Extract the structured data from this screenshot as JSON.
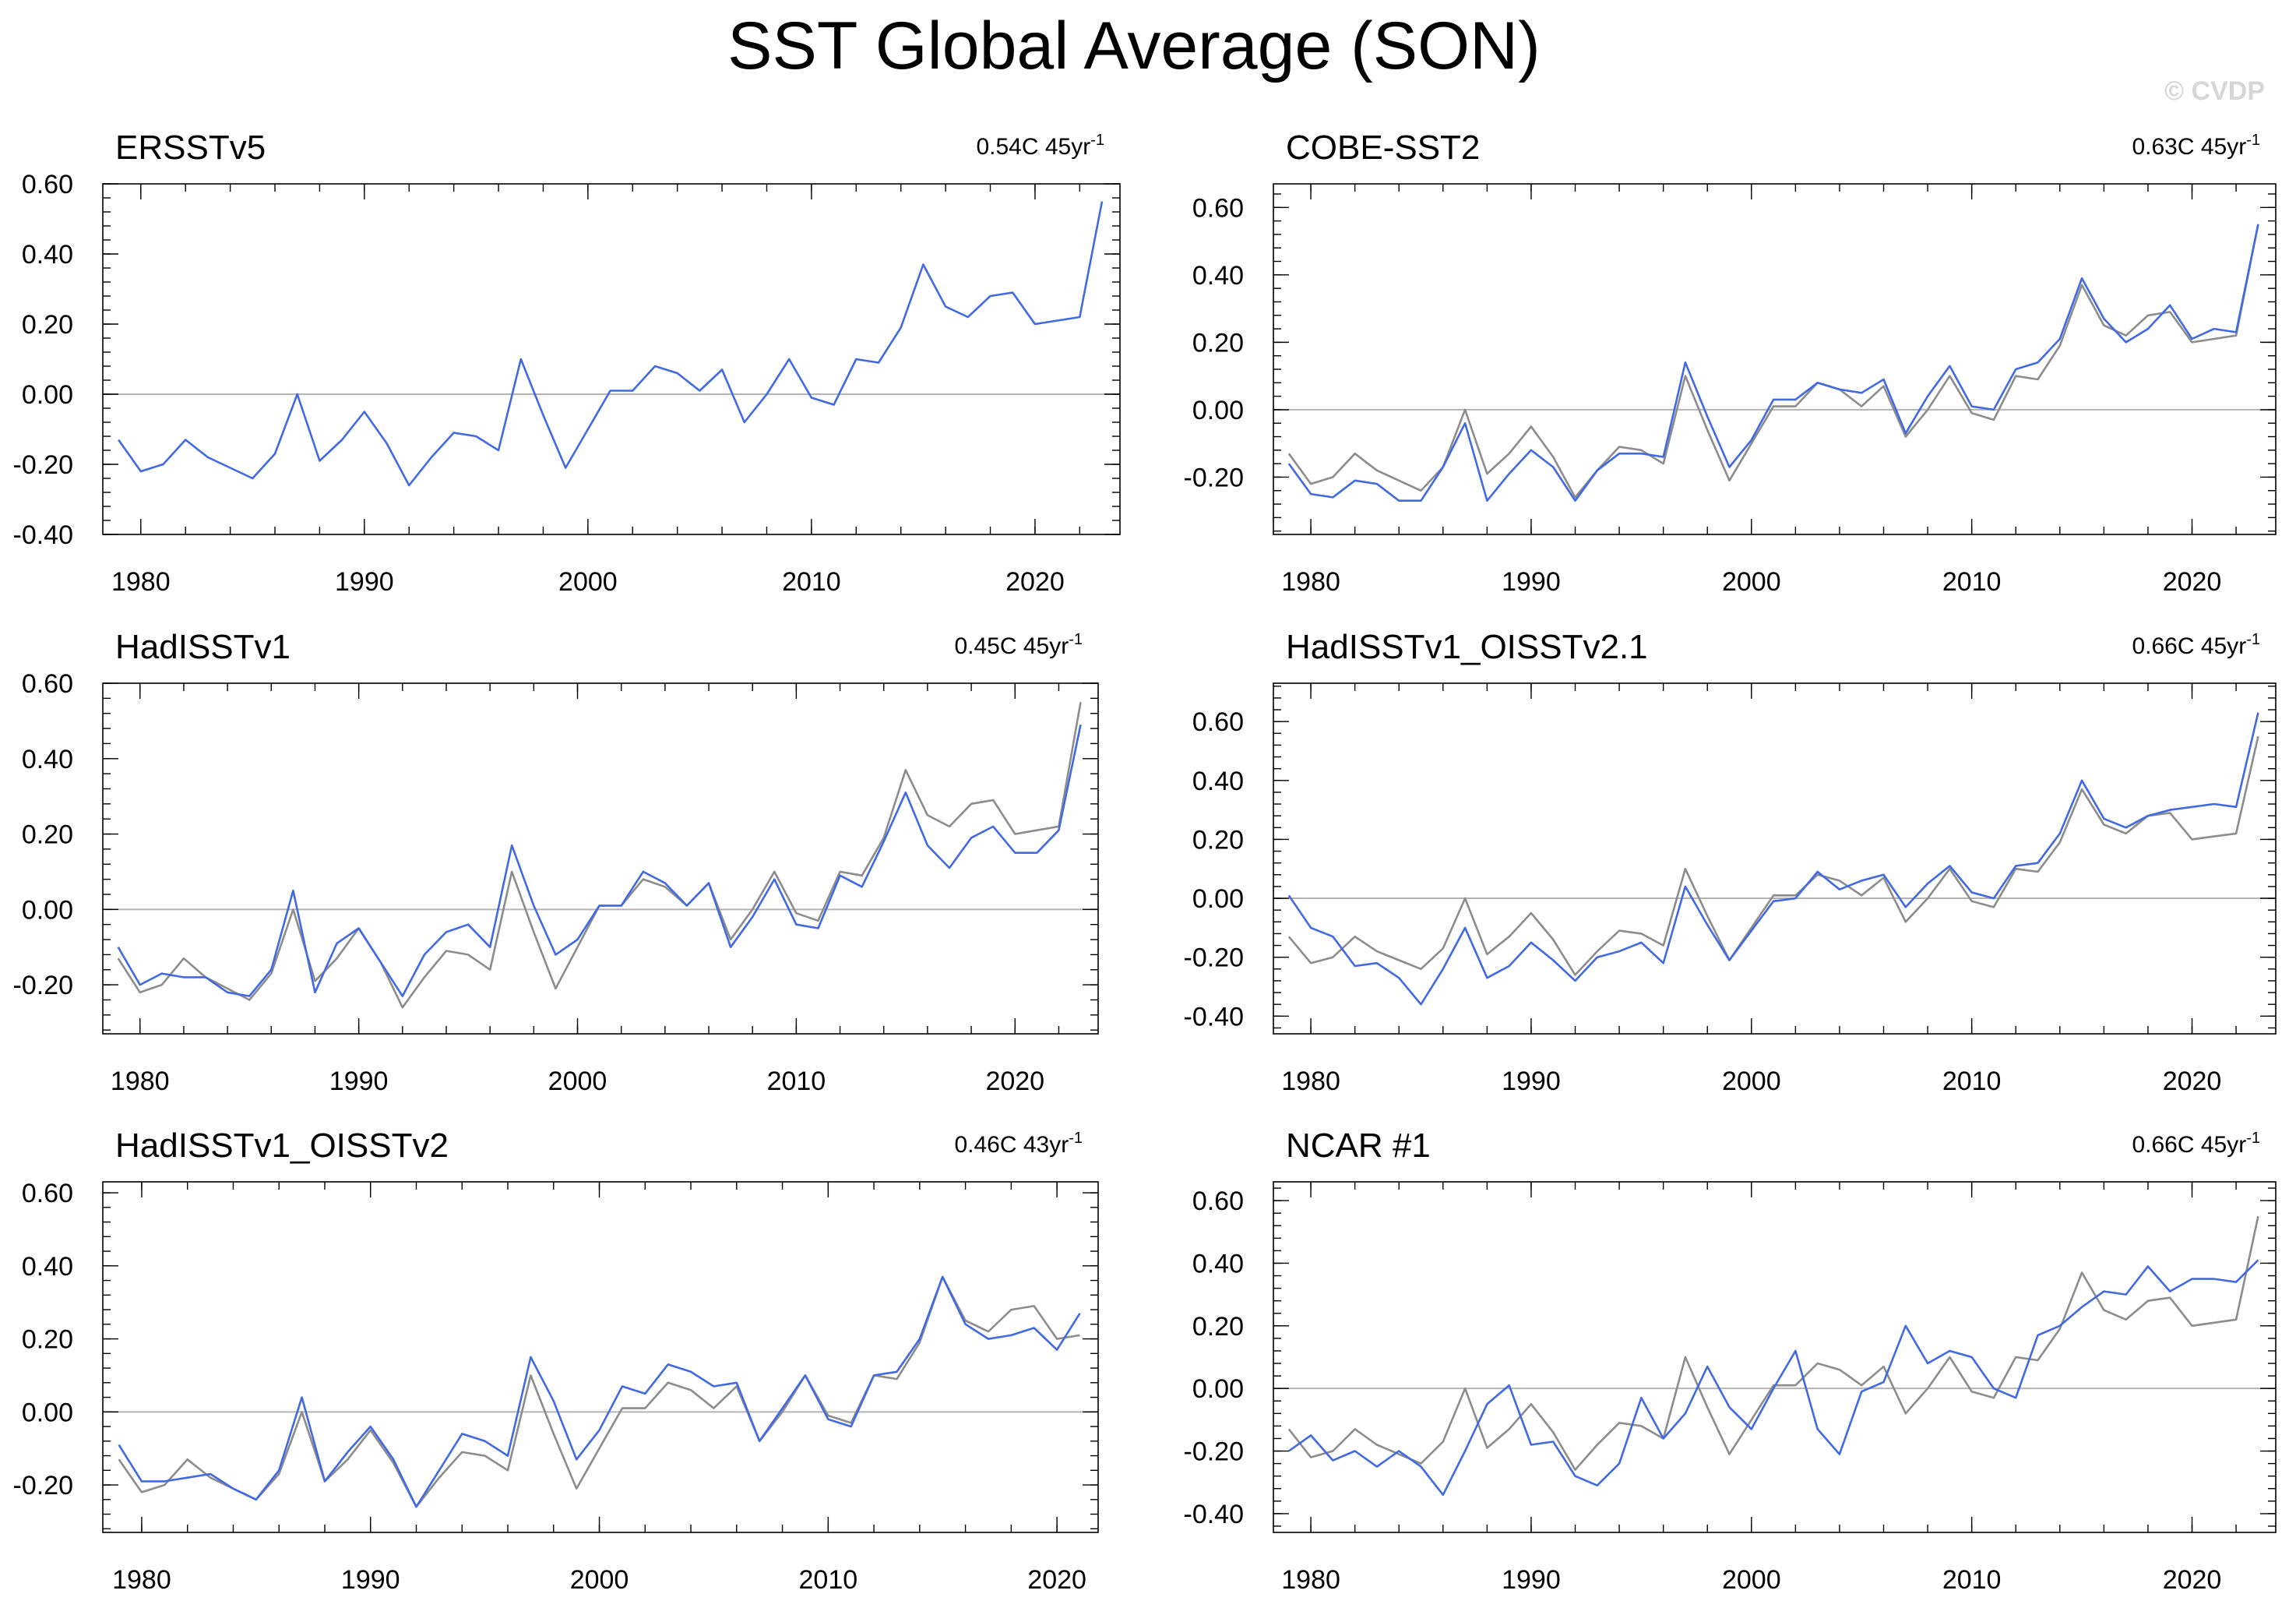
{
  "figure": {
    "title": "SST Global Average (SON)",
    "watermark": "© CVDP"
  },
  "colors": {
    "model": "#4169e1",
    "observation": "#8c8c8c",
    "zero_line": "#b4b4b4"
  },
  "chart_data": [
    {
      "type": "line",
      "title": "ERSSTv5",
      "trend_value": "0.54C 45yr",
      "trend_exp": "-1",
      "xlim": [
        1978.3,
        2023.8
      ],
      "ylim": [
        -0.4,
        0.6
      ],
      "xticks": [
        1980,
        1990,
        2000,
        2010,
        2020
      ],
      "yticks": [
        -0.4,
        -0.2,
        0.0,
        0.2,
        0.4,
        0.6
      ],
      "ytick_labels": [
        "-0.40",
        "-0.20",
        "0.00",
        "0.20",
        "0.40",
        "0.60"
      ],
      "x_start": 1979,
      "series": [
        {
          "role": "model",
          "values": [
            -0.13,
            -0.22,
            -0.2,
            -0.13,
            -0.18,
            -0.21,
            -0.24,
            -0.17,
            0.0,
            -0.19,
            -0.13,
            -0.05,
            -0.14,
            -0.26,
            -0.18,
            -0.11,
            -0.12,
            -0.16,
            0.1,
            -0.06,
            -0.21,
            -0.1,
            0.01,
            0.01,
            0.08,
            0.06,
            0.01,
            0.07,
            -0.08,
            0.0,
            0.1,
            -0.01,
            -0.03,
            0.1,
            0.09,
            0.19,
            0.37,
            0.25,
            0.22,
            0.28,
            0.29,
            0.2,
            0.21,
            0.22,
            0.55
          ]
        }
      ]
    },
    {
      "type": "line",
      "title": "COBE-SST2",
      "trend_value": "0.63C 45yr",
      "trend_exp": "-1",
      "xlim": [
        1978.3,
        2023.8
      ],
      "ylim": [
        -0.37,
        0.67
      ],
      "xticks": [
        1980,
        1990,
        2000,
        2010,
        2020
      ],
      "yticks": [
        -0.2,
        0.0,
        0.2,
        0.4,
        0.6
      ],
      "ytick_labels": [
        "-0.20",
        "0.00",
        "0.20",
        "0.40",
        "0.60"
      ],
      "x_start": 1979,
      "series": [
        {
          "role": "observation",
          "values": [
            -0.13,
            -0.22,
            -0.2,
            -0.13,
            -0.18,
            -0.21,
            -0.24,
            -0.17,
            0.0,
            -0.19,
            -0.13,
            -0.05,
            -0.14,
            -0.26,
            -0.18,
            -0.11,
            -0.12,
            -0.16,
            0.1,
            -0.06,
            -0.21,
            -0.1,
            0.01,
            0.01,
            0.08,
            0.06,
            0.01,
            0.07,
            -0.08,
            0.0,
            0.1,
            -0.01,
            -0.03,
            0.1,
            0.09,
            0.19,
            0.37,
            0.25,
            0.22,
            0.28,
            0.29,
            0.2,
            0.21,
            0.22,
            0.55
          ]
        },
        {
          "role": "model",
          "values": [
            -0.16,
            -0.25,
            -0.26,
            -0.21,
            -0.22,
            -0.27,
            -0.27,
            -0.17,
            -0.04,
            -0.27,
            -0.19,
            -0.12,
            -0.17,
            -0.27,
            -0.18,
            -0.13,
            -0.13,
            -0.14,
            0.14,
            -0.02,
            -0.17,
            -0.09,
            0.03,
            0.03,
            0.08,
            0.06,
            0.05,
            0.09,
            -0.07,
            0.04,
            0.13,
            0.01,
            0.0,
            0.12,
            0.14,
            0.21,
            0.39,
            0.27,
            0.2,
            0.24,
            0.31,
            0.21,
            0.24,
            0.23,
            0.55
          ]
        }
      ]
    },
    {
      "type": "line",
      "title": "HadISSTv1",
      "trend_value": "0.45C 45yr",
      "trend_exp": "-1",
      "xlim": [
        1978.3,
        2023.8
      ],
      "ylim": [
        -0.33,
        0.6
      ],
      "xticks": [
        1980,
        1990,
        2000,
        2010,
        2020
      ],
      "yticks": [
        -0.2,
        0.0,
        0.2,
        0.4,
        0.6
      ],
      "ytick_labels": [
        "-0.20",
        "0.00",
        "0.20",
        "0.40",
        "0.60"
      ],
      "x_start": 1979,
      "series": [
        {
          "role": "observation",
          "values": [
            -0.13,
            -0.22,
            -0.2,
            -0.13,
            -0.18,
            -0.21,
            -0.24,
            -0.17,
            0.0,
            -0.19,
            -0.13,
            -0.05,
            -0.14,
            -0.26,
            -0.18,
            -0.11,
            -0.12,
            -0.16,
            0.1,
            -0.06,
            -0.21,
            -0.1,
            0.01,
            0.01,
            0.08,
            0.06,
            0.01,
            0.07,
            -0.08,
            0.0,
            0.1,
            -0.01,
            -0.03,
            0.1,
            0.09,
            0.19,
            0.37,
            0.25,
            0.22,
            0.28,
            0.29,
            0.2,
            0.21,
            0.22,
            0.55
          ]
        },
        {
          "role": "model",
          "values": [
            -0.1,
            -0.2,
            -0.17,
            -0.18,
            -0.18,
            -0.22,
            -0.23,
            -0.16,
            0.05,
            -0.22,
            -0.09,
            -0.05,
            -0.14,
            -0.23,
            -0.12,
            -0.06,
            -0.04,
            -0.1,
            0.17,
            0.01,
            -0.12,
            -0.08,
            0.01,
            0.01,
            0.1,
            0.07,
            0.01,
            0.07,
            -0.1,
            -0.02,
            0.08,
            -0.04,
            -0.05,
            0.09,
            0.06,
            0.18,
            0.31,
            0.17,
            0.11,
            0.19,
            0.22,
            0.15,
            0.15,
            0.21,
            0.49
          ]
        }
      ]
    },
    {
      "type": "line",
      "title": "HadISSTv1_OISSTv2.1",
      "trend_value": "0.66C 45yr",
      "trend_exp": "-1",
      "xlim": [
        1978.3,
        2023.8
      ],
      "ylim": [
        -0.46,
        0.73
      ],
      "xticks": [
        1980,
        1990,
        2000,
        2010,
        2020
      ],
      "yticks": [
        -0.4,
        -0.2,
        0.0,
        0.2,
        0.4,
        0.6
      ],
      "ytick_labels": [
        "-0.40",
        "-0.20",
        "0.00",
        "0.20",
        "0.40",
        "0.60"
      ],
      "x_start": 1979,
      "series": [
        {
          "role": "observation",
          "values": [
            -0.13,
            -0.22,
            -0.2,
            -0.13,
            -0.18,
            -0.21,
            -0.24,
            -0.17,
            0.0,
            -0.19,
            -0.13,
            -0.05,
            -0.14,
            -0.26,
            -0.18,
            -0.11,
            -0.12,
            -0.16,
            0.1,
            -0.06,
            -0.21,
            -0.1,
            0.01,
            0.01,
            0.08,
            0.06,
            0.01,
            0.07,
            -0.08,
            0.0,
            0.1,
            -0.01,
            -0.03,
            0.1,
            0.09,
            0.19,
            0.37,
            0.25,
            0.22,
            0.28,
            0.29,
            0.2,
            0.21,
            0.22,
            0.55
          ]
        },
        {
          "role": "model",
          "values": [
            0.01,
            -0.1,
            -0.13,
            -0.23,
            -0.22,
            -0.27,
            -0.36,
            -0.24,
            -0.1,
            -0.27,
            -0.23,
            -0.15,
            -0.21,
            -0.28,
            -0.2,
            -0.18,
            -0.15,
            -0.22,
            0.04,
            -0.09,
            -0.21,
            -0.11,
            -0.01,
            0.0,
            0.09,
            0.03,
            0.06,
            0.08,
            -0.03,
            0.05,
            0.11,
            0.02,
            0.0,
            0.11,
            0.12,
            0.22,
            0.4,
            0.27,
            0.24,
            0.28,
            0.3,
            0.31,
            0.32,
            0.31,
            0.63
          ]
        }
      ]
    },
    {
      "type": "line",
      "title": "HadISSTv1_OISSTv2",
      "trend_value": "0.46C 43yr",
      "trend_exp": "-1",
      "xlim": [
        1978.3,
        2021.8
      ],
      "ylim": [
        -0.33,
        0.63
      ],
      "xticks": [
        1980,
        1990,
        2000,
        2010,
        2020
      ],
      "yticks": [
        -0.2,
        0.0,
        0.2,
        0.4,
        0.6
      ],
      "ytick_labels": [
        "-0.20",
        "0.00",
        "0.20",
        "0.40",
        "0.60"
      ],
      "x_start": 1979,
      "series": [
        {
          "role": "observation",
          "values": [
            -0.13,
            -0.22,
            -0.2,
            -0.13,
            -0.18,
            -0.21,
            -0.24,
            -0.17,
            0.0,
            -0.19,
            -0.13,
            -0.05,
            -0.14,
            -0.26,
            -0.18,
            -0.11,
            -0.12,
            -0.16,
            0.1,
            -0.06,
            -0.21,
            -0.1,
            0.01,
            0.01,
            0.08,
            0.06,
            0.01,
            0.07,
            -0.08,
            0.0,
            0.1,
            -0.01,
            -0.03,
            0.1,
            0.09,
            0.19,
            0.37,
            0.25,
            0.22,
            0.28,
            0.29,
            0.2,
            0.21
          ]
        },
        {
          "role": "model",
          "values": [
            -0.09,
            -0.19,
            -0.19,
            -0.18,
            -0.17,
            -0.21,
            -0.24,
            -0.16,
            0.04,
            -0.19,
            -0.11,
            -0.04,
            -0.13,
            -0.26,
            -0.16,
            -0.06,
            -0.08,
            -0.12,
            0.15,
            0.03,
            -0.13,
            -0.05,
            0.07,
            0.05,
            0.13,
            0.11,
            0.07,
            0.08,
            -0.08,
            0.01,
            0.1,
            -0.02,
            -0.04,
            0.1,
            0.11,
            0.2,
            0.37,
            0.24,
            0.2,
            0.21,
            0.23,
            0.17,
            0.27
          ]
        }
      ]
    },
    {
      "type": "line",
      "title": "NCAR #1",
      "trend_value": "0.66C 45yr",
      "trend_exp": "-1",
      "xlim": [
        1978.3,
        2023.8
      ],
      "ylim": [
        -0.46,
        0.66
      ],
      "xticks": [
        1980,
        1990,
        2000,
        2010,
        2020
      ],
      "yticks": [
        -0.4,
        -0.2,
        0.0,
        0.2,
        0.4,
        0.6
      ],
      "ytick_labels": [
        "-0.40",
        "-0.20",
        "0.00",
        "0.20",
        "0.40",
        "0.60"
      ],
      "x_start": 1979,
      "series": [
        {
          "role": "observation",
          "values": [
            -0.13,
            -0.22,
            -0.2,
            -0.13,
            -0.18,
            -0.21,
            -0.24,
            -0.17,
            0.0,
            -0.19,
            -0.13,
            -0.05,
            -0.14,
            -0.26,
            -0.18,
            -0.11,
            -0.12,
            -0.16,
            0.1,
            -0.06,
            -0.21,
            -0.1,
            0.01,
            0.01,
            0.08,
            0.06,
            0.01,
            0.07,
            -0.08,
            0.0,
            0.1,
            -0.01,
            -0.03,
            0.1,
            0.09,
            0.19,
            0.37,
            0.25,
            0.22,
            0.28,
            0.29,
            0.2,
            0.21,
            0.22,
            0.55
          ]
        },
        {
          "role": "model",
          "values": [
            -0.2,
            -0.15,
            -0.23,
            -0.2,
            -0.25,
            -0.2,
            -0.25,
            -0.34,
            -0.2,
            -0.05,
            0.01,
            -0.18,
            -0.17,
            -0.28,
            -0.31,
            -0.24,
            -0.03,
            -0.16,
            -0.08,
            0.07,
            -0.06,
            -0.13,
            0.0,
            0.12,
            -0.13,
            -0.21,
            -0.01,
            0.02,
            0.2,
            0.08,
            0.12,
            0.1,
            0.0,
            -0.03,
            0.17,
            0.2,
            0.26,
            0.31,
            0.3,
            0.39,
            0.31,
            0.35,
            0.35,
            0.34,
            0.41
          ]
        }
      ]
    }
  ]
}
